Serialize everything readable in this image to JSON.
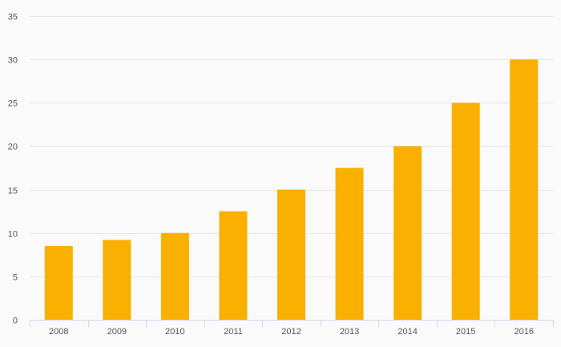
{
  "chart_data": {
    "type": "bar",
    "title": "",
    "xlabel": "",
    "ylabel": "",
    "categories": [
      "2008",
      "2009",
      "2010",
      "2011",
      "2012",
      "2013",
      "2014",
      "2015",
      "2016"
    ],
    "values": [
      8.5,
      9.2,
      10,
      12.5,
      15,
      17.5,
      20,
      25,
      30
    ],
    "ylim": [
      0,
      35
    ],
    "yticks": [
      "0",
      "5",
      "10",
      "15",
      "20",
      "25",
      "30",
      "35"
    ],
    "grid": true,
    "legend": "none",
    "colors": {
      "bar": "#f9b000",
      "grid": "#e6e6e6",
      "axis": "#ccd6eb",
      "background": "#fafafa"
    }
  }
}
